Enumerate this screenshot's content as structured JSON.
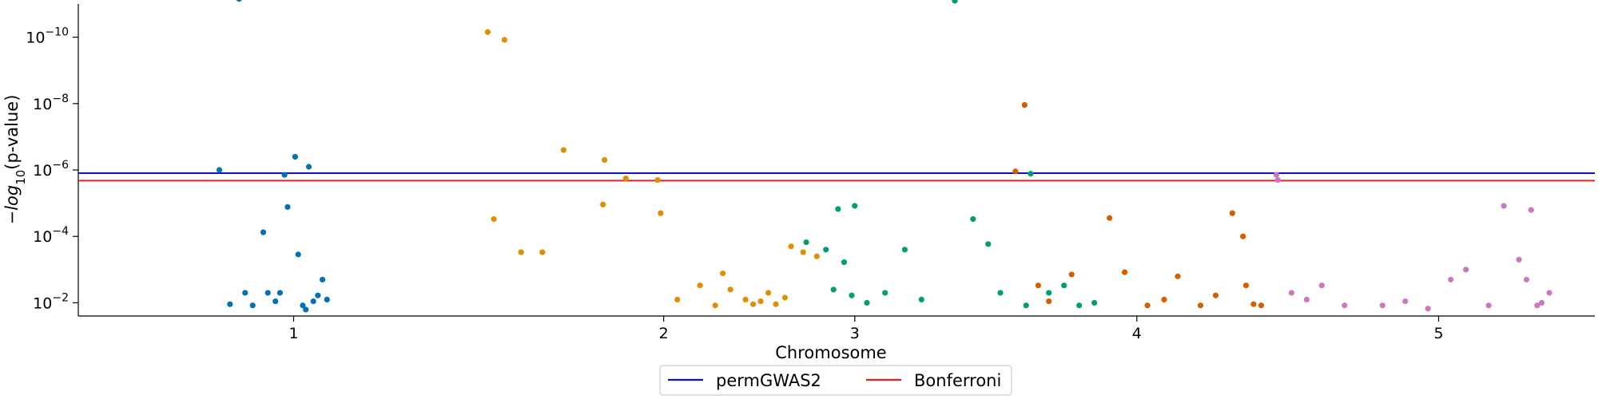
{
  "chart_data": {
    "type": "scatter",
    "title": "",
    "xlabel": "Chromosome",
    "ylabel": "−log10(p-value)",
    "yscale": "log",
    "y_inverted": true,
    "ylim": [
      0.025,
      1e-11
    ],
    "xlim": [
      0,
      1000
    ],
    "x_ticks": [
      {
        "label": "1",
        "x": 142
      },
      {
        "label": "2",
        "x": 386
      },
      {
        "label": "3",
        "x": 512
      },
      {
        "label": "4",
        "x": 698
      },
      {
        "label": "5",
        "x": 897
      }
    ],
    "y_ticks": [
      "10^-2",
      "10^-4",
      "10^-6",
      "10^-8",
      "10^-10"
    ],
    "grid": false,
    "legend_position": "bottom-center",
    "thresholds": [
      {
        "name": "permGWAS2",
        "y": 1.25e-06,
        "color": "#1010cc"
      },
      {
        "name": "Bonferroni",
        "y": 2.1e-06,
        "color": "#e8221a"
      }
    ],
    "series": [
      {
        "chromosome": "1",
        "color": "#0173b2",
        "points": [
          [
            93,
            1e-06
          ],
          [
            106,
            7e-12
          ],
          [
            136,
            1.4e-06
          ],
          [
            143,
            4e-07
          ],
          [
            133,
            0.005
          ],
          [
            152,
            8e-07
          ],
          [
            122,
            7.5e-05
          ],
          [
            138,
            1.3e-05
          ],
          [
            145,
            0.00035
          ],
          [
            130,
            0.009
          ],
          [
            155,
            0.009
          ],
          [
            110,
            0.005
          ],
          [
            115,
            0.012
          ],
          [
            125,
            0.005
          ],
          [
            148,
            0.012
          ],
          [
            158,
            0.006
          ],
          [
            161,
            0.002
          ],
          [
            164,
            0.008
          ],
          [
            100,
            0.011
          ],
          [
            150,
            0.016
          ]
        ]
      },
      {
        "chromosome": "2",
        "color": "#de8f05",
        "points": [
          [
            270,
            7e-11
          ],
          [
            281,
            1.2e-10
          ],
          [
            320,
            2.5e-07
          ],
          [
            347,
            5e-07
          ],
          [
            361,
            1.8e-06
          ],
          [
            382,
            2e-06
          ],
          [
            274,
            3e-05
          ],
          [
            292,
            0.0003
          ],
          [
            306,
            0.0003
          ],
          [
            346,
            1.1e-05
          ],
          [
            384,
            2e-05
          ],
          [
            395,
            0.008
          ],
          [
            410,
            0.003
          ],
          [
            425,
            0.0013
          ],
          [
            430,
            0.004
          ],
          [
            440,
            0.008
          ],
          [
            455,
            0.005
          ],
          [
            470,
            0.0002
          ],
          [
            478,
            0.0003
          ],
          [
            487,
            0.0004
          ],
          [
            445,
            0.011
          ],
          [
            450,
            0.009
          ],
          [
            420,
            0.012
          ],
          [
            460,
            0.011
          ],
          [
            466,
            0.007
          ]
        ]
      },
      {
        "chromosome": "3",
        "color": "#029e73",
        "points": [
          [
            501,
            1.5e-05
          ],
          [
            512,
            1.2e-05
          ],
          [
            480,
            0.00015
          ],
          [
            493,
            0.00025
          ],
          [
            505,
            0.0006
          ],
          [
            498,
            0.004
          ],
          [
            510,
            0.006
          ],
          [
            520,
            0.01
          ],
          [
            532,
            0.005
          ],
          [
            545,
            0.00025
          ],
          [
            556,
            0.008
          ],
          [
            578,
            8e-12
          ],
          [
            590,
            3e-05
          ],
          [
            600,
            0.00017
          ],
          [
            608,
            0.005
          ],
          [
            625,
            0.012
          ],
          [
            640,
            0.005
          ],
          [
            650,
            0.003
          ],
          [
            660,
            0.012
          ],
          [
            628,
            1.3e-06
          ],
          [
            670,
            0.01
          ]
        ]
      },
      {
        "chromosome": "4",
        "color": "#d55e00",
        "points": [
          [
            624,
            1.1e-08
          ],
          [
            618,
            1.1e-06
          ],
          [
            633,
            0.003
          ],
          [
            640,
            0.009
          ],
          [
            655,
            0.0014
          ],
          [
            680,
            2.8e-05
          ],
          [
            690,
            0.0012
          ],
          [
            705,
            0.012
          ],
          [
            716,
            0.008
          ],
          [
            725,
            0.0016
          ],
          [
            740,
            0.012
          ],
          [
            750,
            0.006
          ],
          [
            761,
            2e-05
          ],
          [
            768,
            0.0001
          ],
          [
            770,
            0.003
          ],
          [
            775,
            0.011
          ],
          [
            780,
            0.012
          ]
        ]
      },
      {
        "chromosome": "5",
        "color": "#cc78bc",
        "points": [
          [
            790,
            1.4e-06
          ],
          [
            791,
            2e-06
          ],
          [
            800,
            0.005
          ],
          [
            810,
            0.008
          ],
          [
            820,
            0.003
          ],
          [
            835,
            0.012
          ],
          [
            860,
            0.012
          ],
          [
            875,
            0.009
          ],
          [
            890,
            0.015
          ],
          [
            905,
            0.002
          ],
          [
            915,
            0.001
          ],
          [
            930,
            0.012
          ],
          [
            940,
            1.2e-05
          ],
          [
            950,
            0.0005
          ],
          [
            955,
            0.002
          ],
          [
            958,
            1.6e-05
          ],
          [
            962,
            0.012
          ],
          [
            965,
            0.01
          ],
          [
            970,
            0.005
          ]
        ]
      }
    ]
  }
}
